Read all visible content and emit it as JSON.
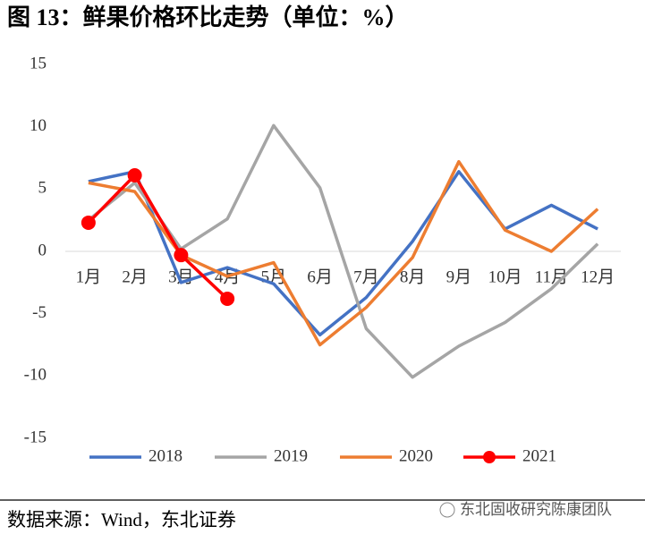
{
  "chart_data": {
    "type": "line",
    "title": "图 13：鲜果价格环比走势（单位：%）",
    "categories": [
      "1月",
      "2月",
      "3月",
      "4月",
      "5月",
      "6月",
      "7月",
      "8月",
      "9月",
      "10月",
      "11月",
      "12月"
    ],
    "series": [
      {
        "name": "2018",
        "color": "#4472c4",
        "values": [
          5.6,
          6.4,
          -2.5,
          -1.3,
          -2.6,
          -6.7,
          -3.7,
          0.8,
          6.4,
          1.8,
          3.7,
          1.8
        ]
      },
      {
        "name": "2019",
        "color": "#a5a5a5",
        "values": [
          2.5,
          5.5,
          0.2,
          2.6,
          10.1,
          5.1,
          -6.2,
          -10.1,
          -7.6,
          -5.7,
          -3.0,
          0.6
        ]
      },
      {
        "name": "2020",
        "color": "#ed7d31",
        "values": [
          5.5,
          4.8,
          -0.3,
          -2.0,
          -0.9,
          -7.5,
          -4.5,
          -0.5,
          7.2,
          1.7,
          0.0,
          3.4
        ]
      },
      {
        "name": "2021",
        "color": "#ff0000",
        "values": [
          2.3,
          6.1,
          -0.3,
          -3.8,
          null,
          null,
          null,
          null,
          null,
          null,
          null,
          null
        ]
      }
    ],
    "ylim": [
      -15,
      15
    ],
    "yticks": [
      -15,
      -10,
      -5,
      0,
      5,
      10,
      15
    ],
    "legend": "bottom",
    "source": "数据来源：Wind，东北证券",
    "watermark": "东北固收研究陈康团队"
  }
}
